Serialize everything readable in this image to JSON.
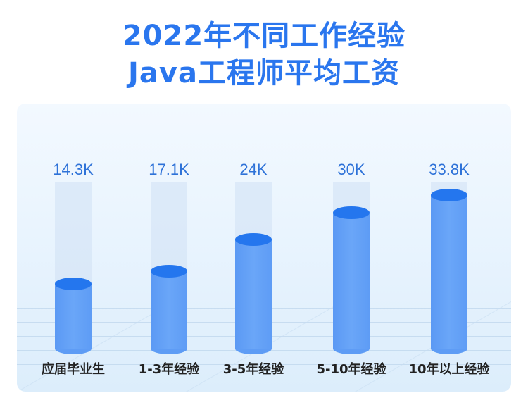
{
  "title": {
    "line1": "2022年不同工作经验",
    "line2": "Java工程师平均工资"
  },
  "colors": {
    "title": "#2a76ee",
    "bar_body": "#65a2f7",
    "bar_top": "#2476ee",
    "value_label": "#2e72d8",
    "card_bg": "#e9f4fe"
  },
  "chart_data": {
    "type": "bar",
    "title": "2022年不同工作经验Java工程师平均工资",
    "xlabel": "",
    "ylabel": "",
    "categories": [
      "应届毕业生",
      "1-3年经验",
      "3-5年经验",
      "5-10年经验",
      "10年以上经验"
    ],
    "values": [
      14.3,
      17.1,
      24,
      30,
      33.8
    ],
    "value_labels": [
      "14.3K",
      "17.1K",
      "24K",
      "30K",
      "33.8K"
    ],
    "unit": "K",
    "grid": false,
    "legend": "none",
    "style": "3d-cylinder"
  }
}
